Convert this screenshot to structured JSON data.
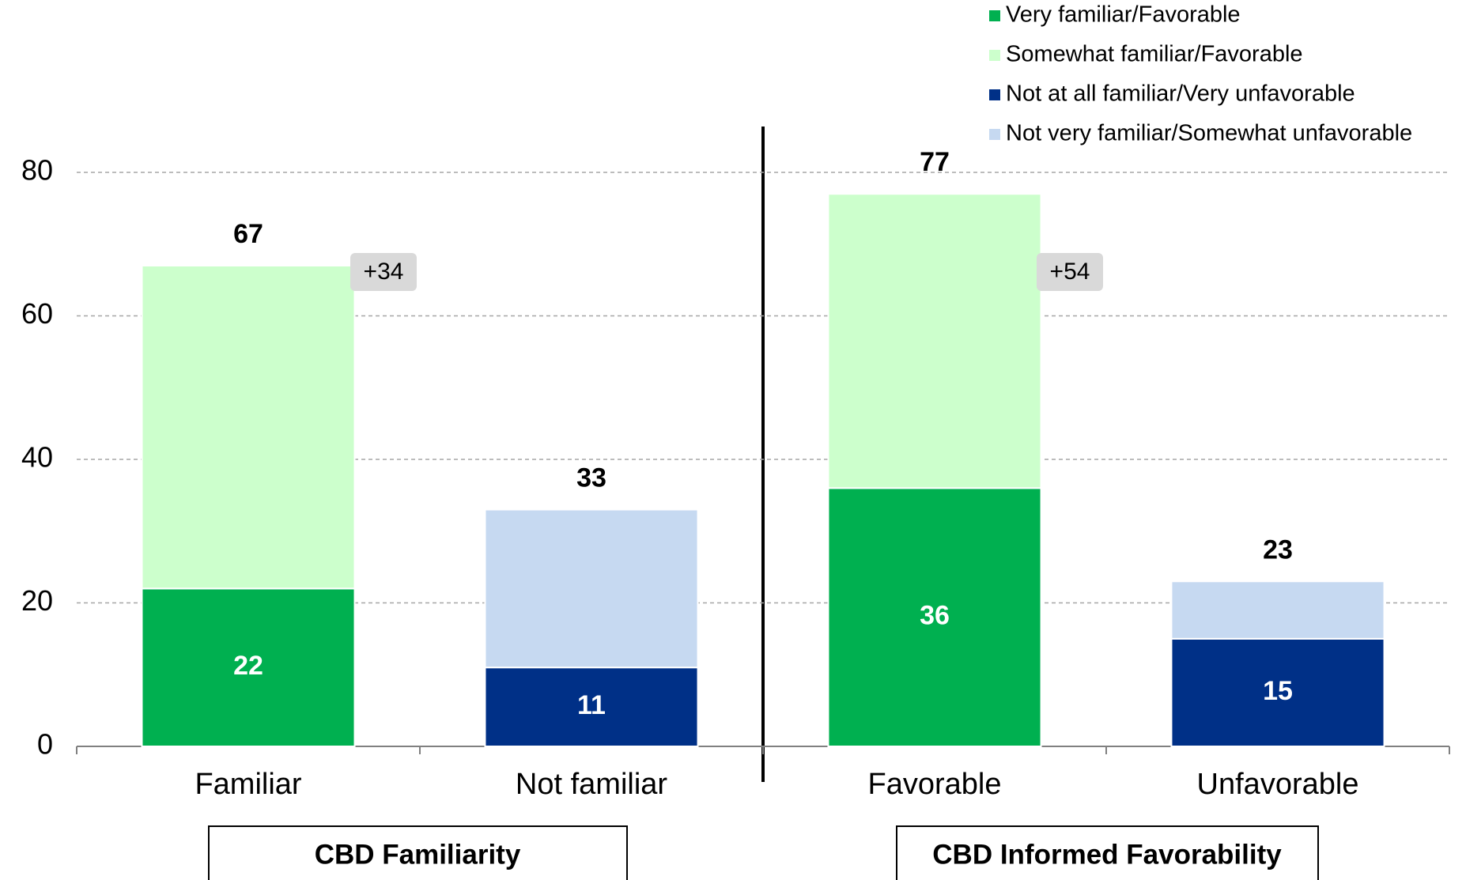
{
  "chart_data": {
    "type": "stacked_bar",
    "categories": [
      "Familiar",
      "Not familiar",
      "Favorable",
      "Unfavorable"
    ],
    "series": [
      {
        "name": "Very familiar/Favorable",
        "color": "#00b050",
        "values": [
          22,
          null,
          36,
          null
        ],
        "show_labels": true
      },
      {
        "name": "Somewhat familiar/Favorable",
        "color": "#ccffcc",
        "values": [
          45,
          null,
          41,
          null
        ],
        "show_labels": false
      },
      {
        "name": "Not at all familiar/Very unfavorable",
        "color": "#003087",
        "values": [
          null,
          11,
          null,
          15
        ],
        "show_labels": true
      },
      {
        "name": "Not very familiar/Somewhat unfavorable",
        "color": "#c6d9f1",
        "values": [
          null,
          22,
          null,
          8
        ],
        "show_labels": false
      }
    ],
    "totals": [
      67,
      33,
      77,
      23
    ],
    "annotations": [
      "+34",
      "+54"
    ],
    "groups": [
      "CBD Familiarity",
      "CBD Informed Favorability"
    ],
    "ylim": [
      0,
      80
    ],
    "yticks": [
      0,
      20,
      40,
      60,
      80
    ],
    "grid": true,
    "legend": "top-right"
  }
}
